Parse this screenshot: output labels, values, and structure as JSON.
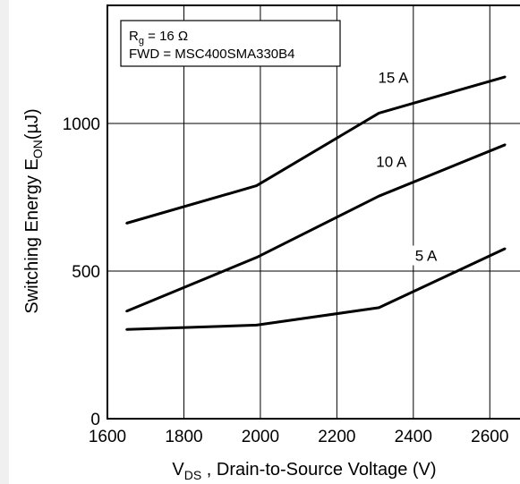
{
  "chart_data": {
    "type": "line",
    "title": "",
    "xlabel": {
      "main": "V",
      "sub": "DS",
      "rest": " , Drain-to-Source Voltage (V)"
    },
    "ylabel": {
      "main": "Switching Energy E",
      "sub": "ON",
      "rest": "(µJ)"
    },
    "xlim": [
      1600,
      2700
    ],
    "ylim": [
      0,
      1400
    ],
    "x_ticks": [
      "1600",
      "1800",
      "2000",
      "2200",
      "2400",
      "2600"
    ],
    "y_ticks": [
      "0",
      "500",
      "1000"
    ],
    "grid": true,
    "legend_box": {
      "line1": {
        "main": "R",
        "sub": "g",
        "rest": " = 16 Ω"
      },
      "line2": "FWD = MSC400SMA330B4"
    },
    "series": [
      {
        "name": "15 A",
        "x": [
          1650,
          1990,
          2310,
          2640
        ],
        "values": [
          662,
          789,
          1035,
          1158
        ]
      },
      {
        "name": "10 A",
        "x": [
          1650,
          1990,
          2310,
          2640
        ],
        "values": [
          364,
          546,
          754,
          928
        ]
      },
      {
        "name": "5 A",
        "x": [
          1650,
          1990,
          2310,
          2640
        ],
        "values": [
          302,
          317,
          376,
          576
        ]
      }
    ],
    "line_color": "#000000",
    "grid_color": "#000000"
  }
}
